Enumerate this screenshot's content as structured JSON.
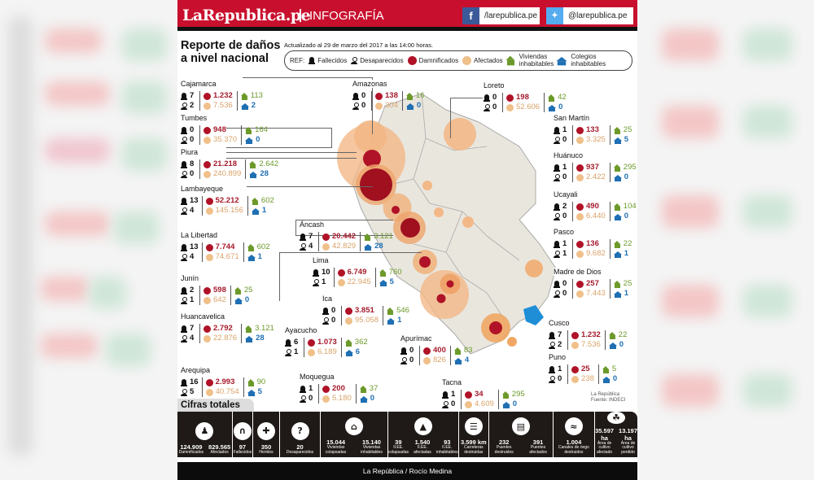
{
  "header": {
    "logo": "LaRepublica.pe",
    "section": "INFOGRAFÍA",
    "facebook": "/larepublica.pe",
    "twitter": "@larepublica.pe"
  },
  "title_line1": "Reporte de daños",
  "title_line2": "a nivel nacional",
  "updated": "Actualizado al 29 de marzo del 2017 a las 14:00 horas.",
  "legend": {
    "ref": "REF:",
    "fallecidos": "Fallecidos",
    "desaparecidos": "Desaparecidos",
    "damnificados": "Damnificados",
    "afectados": "Afectados",
    "viviendas_1": "Viviendas",
    "viviendas_2": "inhabitables",
    "colegios_1": "Colegios",
    "colegios_2": "inhabitables"
  },
  "colors": {
    "brand_red": "#c8102e",
    "damnificados": "#b01227",
    "afectados": "#f0c08a",
    "viviendas": "#6c9a2a",
    "colegios": "#1f6fb3"
  },
  "regions": [
    {
      "name": "Cajamarca",
      "fallecidos": "7",
      "desaparecidos": "2",
      "damnificados": "1.232",
      "afectados": "7.536",
      "viviendas": "113",
      "colegios": "2"
    },
    {
      "name": "Tumbes",
      "fallecidos": "0",
      "desaparecidos": "0",
      "damnificados": "948",
      "afectados": "35.370",
      "viviendas": "164",
      "colegios": "0"
    },
    {
      "name": "Piura",
      "fallecidos": "8",
      "desaparecidos": "0",
      "damnificados": "21.218",
      "afectados": "240.899",
      "viviendas": "2.642",
      "colegios": "28"
    },
    {
      "name": "Lambayeque",
      "fallecidos": "13",
      "desaparecidos": "4",
      "damnificados": "52.212",
      "afectados": "145.156",
      "viviendas": "602",
      "colegios": "1"
    },
    {
      "name": "La Libertad",
      "fallecidos": "13",
      "desaparecidos": "4",
      "damnificados": "7.744",
      "afectados": "74.671",
      "viviendas": "602",
      "colegios": "1"
    },
    {
      "name": "Junín",
      "fallecidos": "2",
      "desaparecidos": "1",
      "damnificados": "598",
      "afectados": "642",
      "viviendas": "25",
      "colegios": "0"
    },
    {
      "name": "Huancavelica",
      "fallecidos": "7",
      "desaparecidos": "4",
      "damnificados": "2.792",
      "afectados": "22.876",
      "viviendas": "3.121",
      "colegios": "28"
    },
    {
      "name": "Arequipa",
      "fallecidos": "16",
      "desaparecidos": "5",
      "damnificados": "2.993",
      "afectados": "40.754",
      "viviendas": "90",
      "colegios": "5"
    },
    {
      "name": "Amazonas",
      "fallecidos": "0",
      "desaparecidos": "0",
      "damnificados": "138",
      "afectados": "304",
      "viviendas": "16",
      "colegios": "0"
    },
    {
      "name": "Áncash",
      "fallecidos": "7",
      "desaparecidos": "4",
      "damnificados": "20.442",
      "afectados": "42.829",
      "viviendas": "3.121",
      "colegios": "28"
    },
    {
      "name": "Lima",
      "fallecidos": "10",
      "desaparecidos": "1",
      "damnificados": "6.749",
      "afectados": "22.945",
      "viviendas": "760",
      "colegios": "5"
    },
    {
      "name": "Ica",
      "fallecidos": "0",
      "desaparecidos": "0",
      "damnificados": "3.851",
      "afectados": "95.058",
      "viviendas": "546",
      "colegios": "1"
    },
    {
      "name": "Ayacucho",
      "fallecidos": "6",
      "desaparecidos": "1",
      "damnificados": "1.073",
      "afectados": "6.189",
      "viviendas": "362",
      "colegios": "6"
    },
    {
      "name": "Moquegua",
      "fallecidos": "1",
      "desaparecidos": "0",
      "damnificados": "200",
      "afectados": "5.180",
      "viviendas": "37",
      "colegios": "0"
    },
    {
      "name": "Apurímac",
      "fallecidos": "0",
      "desaparecidos": "0",
      "damnificados": "400",
      "afectados": "826",
      "viviendas": "83",
      "colegios": "4"
    },
    {
      "name": "Tacna",
      "fallecidos": "1",
      "desaparecidos": "0",
      "damnificados": "34",
      "afectados": "4.609",
      "viviendas": "295",
      "colegios": "0"
    },
    {
      "name": "Loreto",
      "fallecidos": "0",
      "desaparecidos": "0",
      "damnificados": "198",
      "afectados": "52.606",
      "viviendas": "42",
      "colegios": "0"
    },
    {
      "name": "San Martín",
      "fallecidos": "1",
      "desaparecidos": "0",
      "damnificados": "133",
      "afectados": "3.325",
      "viviendas": "25",
      "colegios": "5"
    },
    {
      "name": "Huánuco",
      "fallecidos": "1",
      "desaparecidos": "0",
      "damnificados": "937",
      "afectados": "2.422",
      "viviendas": "295",
      "colegios": "0"
    },
    {
      "name": "Ucayali",
      "fallecidos": "2",
      "desaparecidos": "0",
      "damnificados": "490",
      "afectados": "6.440",
      "viviendas": "104",
      "colegios": "0"
    },
    {
      "name": "Pasco",
      "fallecidos": "1",
      "desaparecidos": "1",
      "damnificados": "136",
      "afectados": "9.682",
      "viviendas": "22",
      "colegios": "1"
    },
    {
      "name": "Madre de Dios",
      "fallecidos": "0",
      "desaparecidos": "0",
      "damnificados": "257",
      "afectados": "7.443",
      "viviendas": "25",
      "colegios": "1"
    },
    {
      "name": "Cusco",
      "fallecidos": "7",
      "desaparecidos": "2",
      "damnificados": "1.232",
      "afectados": "7.536",
      "viviendas": "22",
      "colegios": "0"
    },
    {
      "name": "Puno",
      "fallecidos": "1",
      "desaparecidos": "0",
      "damnificados": "25",
      "afectados": "238",
      "viviendas": "5",
      "colegios": "0"
    }
  ],
  "source_1": "La República",
  "source_2": "Fuente: INDECI",
  "totals_title": "Cifras totales",
  "totals": [
    {
      "icon": "people-icon",
      "items": [
        {
          "value": "124.909",
          "label": "Damnificados"
        },
        {
          "value": "829.565",
          "label": "Afectados"
        }
      ]
    },
    {
      "icon": "tomb-icon",
      "items": [
        {
          "value": "97",
          "label": "Fallecidos"
        }
      ]
    },
    {
      "icon": "injured-icon",
      "items": [
        {
          "value": "350",
          "label": "Heridos"
        }
      ]
    },
    {
      "icon": "question-head-icon",
      "items": [
        {
          "value": "20",
          "label": "Desaparecidos"
        }
      ]
    },
    {
      "icon": "house-icon",
      "items": [
        {
          "value": "15.044",
          "label": "Viviendas colapsadas"
        },
        {
          "value": "15.140",
          "label": "Viviendas inhabitables"
        }
      ]
    },
    {
      "icon": "school-icon",
      "items": [
        {
          "value": "39",
          "label": "II.EE. colapsadas"
        },
        {
          "value": "1.540",
          "label": "II.EE. afectadas"
        },
        {
          "value": "93",
          "label": "II.EE. inhabitables"
        }
      ]
    },
    {
      "icon": "road-icon",
      "items": [
        {
          "value": "3.599 km",
          "label": "Carreteras destruidas"
        }
      ]
    },
    {
      "icon": "bridge-icon",
      "items": [
        {
          "value": "232",
          "label": "Puentes destruidos"
        },
        {
          "value": "391",
          "label": "Puentes afectados"
        }
      ]
    },
    {
      "icon": "canal-icon",
      "items": [
        {
          "value": "1.004",
          "label": "Canales de riego destruidos"
        }
      ]
    },
    {
      "icon": "farm-icon",
      "items": [
        {
          "value": "35.597 ha",
          "label": "Área de cultivo afectado"
        },
        {
          "value": "13.197 ha",
          "label": "Área de cultivo perdido"
        }
      ]
    }
  ],
  "footer": "La República / Rocío Medina"
}
